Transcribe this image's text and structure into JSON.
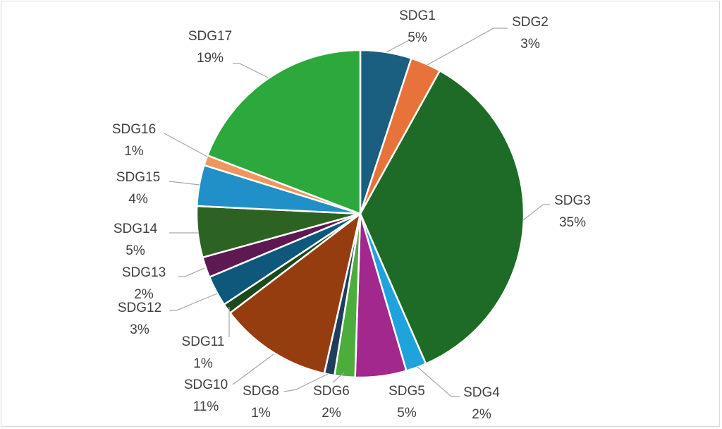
{
  "chart_data": {
    "type": "pie",
    "title": "",
    "slices": [
      {
        "name": "SDG1",
        "value": 5,
        "label": "5%",
        "color": "#1a5e80"
      },
      {
        "name": "SDG2",
        "value": 3,
        "label": "3%",
        "color": "#e8733a"
      },
      {
        "name": "SDG3",
        "value": 35,
        "label": "35%",
        "color": "#1d6b26"
      },
      {
        "name": "SDG4",
        "value": 2,
        "label": "2%",
        "color": "#1fa3dc"
      },
      {
        "name": "SDG5",
        "value": 5,
        "label": "5%",
        "color": "#a2288d"
      },
      {
        "name": "SDG6",
        "value": 2,
        "label": "2%",
        "color": "#4cad3c"
      },
      {
        "name": "SDG8",
        "value": 1,
        "label": "1%",
        "color": "#1e3e5c"
      },
      {
        "name": "SDG10",
        "value": 11,
        "label": "11%",
        "color": "#963d10"
      },
      {
        "name": "SDG11",
        "value": 1,
        "label": "1%",
        "color": "#1c4a1c"
      },
      {
        "name": "SDG12",
        "value": 3,
        "label": "3%",
        "color": "#0e587c"
      },
      {
        "name": "SDG13",
        "value": 2,
        "label": "2%",
        "color": "#5e1852"
      },
      {
        "name": "SDG14",
        "value": 5,
        "label": "5%",
        "color": "#2d6322"
      },
      {
        "name": "SDG15",
        "value": 4,
        "label": "4%",
        "color": "#2290c8"
      },
      {
        "name": "SDG16",
        "value": 1,
        "label": "1%",
        "color": "#f0955e"
      },
      {
        "name": "SDG17",
        "value": 19,
        "label": "19%",
        "color": "#2ca83c"
      }
    ]
  }
}
